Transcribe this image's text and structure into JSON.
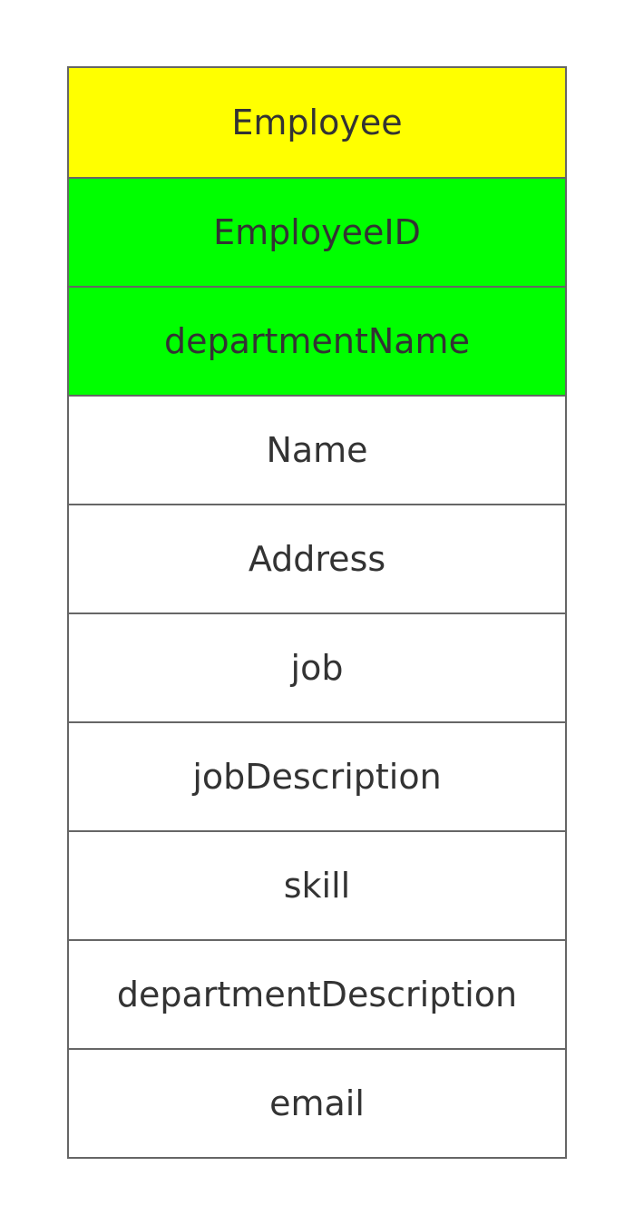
{
  "entity": {
    "name": "Employee",
    "header_color": "#ffff00",
    "key_color": "#00ff00",
    "keys": [
      "EmployeeID",
      "departmentName"
    ],
    "attributes": [
      "Name",
      "Address",
      "job",
      "jobDescription",
      "skill",
      "departmentDescription",
      "email"
    ]
  }
}
